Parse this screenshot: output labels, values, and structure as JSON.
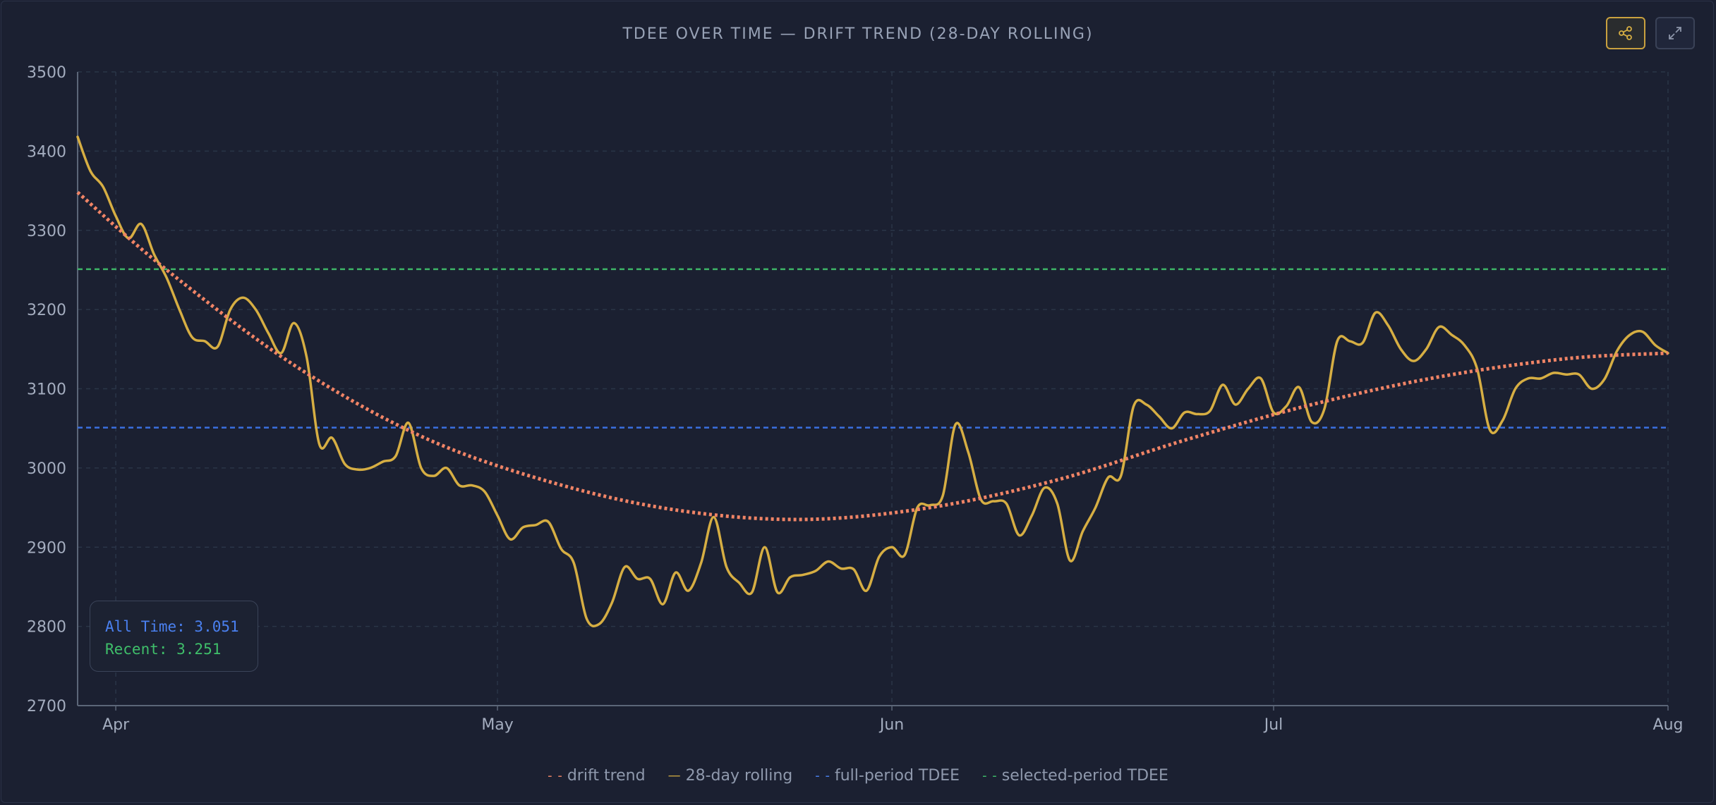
{
  "colors": {
    "background": "#1b2031",
    "drift": "#f08466",
    "rolling": "#d6ae43",
    "full": "#3a6fe0",
    "selected": "#3db567",
    "grid": "#2a3547",
    "axis": "#5c6678"
  },
  "toolbar": {
    "share_icon": "share-icon",
    "expand_icon": "expand-icon"
  },
  "stats": {
    "all_time": "All Time: 3.051",
    "recent": "Recent: 3.251"
  },
  "legend": [
    {
      "swatch": "- -",
      "label": "drift trend",
      "color": "#f08466"
    },
    {
      "swatch": "—",
      "label": "28-day rolling",
      "color": "#d6ae43"
    },
    {
      "swatch": "- -",
      "label": "full-period TDEE",
      "color": "#4a80f0"
    },
    {
      "swatch": "- -",
      "label": "selected-period TDEE",
      "color": "#3fbf6a"
    }
  ],
  "chart_data": {
    "type": "line",
    "title": "TDEE OVER TIME — DRIFT TREND (28-DAY ROLLING)",
    "xlabel": "",
    "ylabel": "",
    "ylim": [
      2700,
      3500
    ],
    "xlim": [
      "2024-03-29",
      "2024-08-01"
    ],
    "yticks": [
      2700,
      2800,
      2900,
      3000,
      3100,
      3200,
      3300,
      3400,
      3500
    ],
    "xticks": [
      {
        "date": "2024-04-01",
        "label": "Apr"
      },
      {
        "date": "2024-05-01",
        "label": "May"
      },
      {
        "date": "2024-06-01",
        "label": "Jun"
      },
      {
        "date": "2024-07-01",
        "label": "Jul"
      },
      {
        "date": "2024-08-01",
        "label": "Aug"
      }
    ],
    "grid": true,
    "legend_position": "bottom",
    "series": [
      {
        "name": "28-day rolling",
        "style": "solid",
        "points": [
          [
            "2024-03-29",
            3418
          ],
          [
            "2024-03-30",
            3375
          ],
          [
            "2024-03-31",
            3355
          ],
          [
            "2024-04-01",
            3318
          ],
          [
            "2024-04-02",
            3290
          ],
          [
            "2024-04-03",
            3308
          ],
          [
            "2024-04-04",
            3270
          ],
          [
            "2024-04-05",
            3240
          ],
          [
            "2024-04-06",
            3200
          ],
          [
            "2024-04-07",
            3165
          ],
          [
            "2024-04-08",
            3160
          ],
          [
            "2024-04-09",
            3153
          ],
          [
            "2024-04-10",
            3200
          ],
          [
            "2024-04-11",
            3215
          ],
          [
            "2024-04-12",
            3200
          ],
          [
            "2024-04-13",
            3170
          ],
          [
            "2024-04-14",
            3145
          ],
          [
            "2024-04-15",
            3183
          ],
          [
            "2024-04-16",
            3140
          ],
          [
            "2024-04-17",
            3030
          ],
          [
            "2024-04-18",
            3038
          ],
          [
            "2024-04-19",
            3005
          ],
          [
            "2024-04-20",
            2998
          ],
          [
            "2024-04-21",
            3000
          ],
          [
            "2024-04-22",
            3008
          ],
          [
            "2024-04-23",
            3015
          ],
          [
            "2024-04-24",
            3057
          ],
          [
            "2024-04-25",
            3000
          ],
          [
            "2024-04-26",
            2990
          ],
          [
            "2024-04-27",
            3000
          ],
          [
            "2024-04-28",
            2978
          ],
          [
            "2024-04-29",
            2978
          ],
          [
            "2024-04-30",
            2970
          ],
          [
            "2024-05-01",
            2940
          ],
          [
            "2024-05-02",
            2910
          ],
          [
            "2024-05-03",
            2925
          ],
          [
            "2024-05-04",
            2928
          ],
          [
            "2024-05-05",
            2932
          ],
          [
            "2024-05-06",
            2898
          ],
          [
            "2024-05-07",
            2880
          ],
          [
            "2024-05-08",
            2810
          ],
          [
            "2024-05-09",
            2803
          ],
          [
            "2024-05-10",
            2830
          ],
          [
            "2024-05-11",
            2875
          ],
          [
            "2024-05-12",
            2860
          ],
          [
            "2024-05-13",
            2860
          ],
          [
            "2024-05-14",
            2828
          ],
          [
            "2024-05-15",
            2868
          ],
          [
            "2024-05-16",
            2845
          ],
          [
            "2024-05-17",
            2880
          ],
          [
            "2024-05-18",
            2938
          ],
          [
            "2024-05-19",
            2875
          ],
          [
            "2024-05-20",
            2855
          ],
          [
            "2024-05-21",
            2843
          ],
          [
            "2024-05-22",
            2900
          ],
          [
            "2024-05-23",
            2843
          ],
          [
            "2024-05-24",
            2862
          ],
          [
            "2024-05-25",
            2865
          ],
          [
            "2024-05-26",
            2870
          ],
          [
            "2024-05-27",
            2882
          ],
          [
            "2024-05-28",
            2873
          ],
          [
            "2024-05-29",
            2872
          ],
          [
            "2024-05-30",
            2845
          ],
          [
            "2024-05-31",
            2888
          ],
          [
            "2024-06-01",
            2900
          ],
          [
            "2024-06-02",
            2890
          ],
          [
            "2024-06-03",
            2950
          ],
          [
            "2024-06-04",
            2953
          ],
          [
            "2024-06-05",
            2965
          ],
          [
            "2024-06-06",
            3055
          ],
          [
            "2024-06-07",
            3020
          ],
          [
            "2024-06-08",
            2960
          ],
          [
            "2024-06-09",
            2958
          ],
          [
            "2024-06-10",
            2955
          ],
          [
            "2024-06-11",
            2915
          ],
          [
            "2024-06-12",
            2940
          ],
          [
            "2024-06-13",
            2975
          ],
          [
            "2024-06-14",
            2955
          ],
          [
            "2024-06-15",
            2883
          ],
          [
            "2024-06-16",
            2920
          ],
          [
            "2024-06-17",
            2950
          ],
          [
            "2024-06-18",
            2988
          ],
          [
            "2024-06-19",
            2990
          ],
          [
            "2024-06-20",
            3078
          ],
          [
            "2024-06-21",
            3080
          ],
          [
            "2024-06-22",
            3065
          ],
          [
            "2024-06-23",
            3050
          ],
          [
            "2024-06-24",
            3070
          ],
          [
            "2024-06-25",
            3068
          ],
          [
            "2024-06-26",
            3072
          ],
          [
            "2024-06-27",
            3105
          ],
          [
            "2024-06-28",
            3080
          ],
          [
            "2024-06-29",
            3100
          ],
          [
            "2024-06-30",
            3113
          ],
          [
            "2024-07-01",
            3070
          ],
          [
            "2024-07-02",
            3078
          ],
          [
            "2024-07-03",
            3102
          ],
          [
            "2024-07-04",
            3058
          ],
          [
            "2024-07-05",
            3075
          ],
          [
            "2024-07-06",
            3160
          ],
          [
            "2024-07-07",
            3160
          ],
          [
            "2024-07-08",
            3158
          ],
          [
            "2024-07-09",
            3196
          ],
          [
            "2024-07-10",
            3180
          ],
          [
            "2024-07-11",
            3150
          ],
          [
            "2024-07-12",
            3135
          ],
          [
            "2024-07-13",
            3150
          ],
          [
            "2024-07-14",
            3178
          ],
          [
            "2024-07-15",
            3168
          ],
          [
            "2024-07-16",
            3155
          ],
          [
            "2024-07-17",
            3125
          ],
          [
            "2024-07-18",
            3048
          ],
          [
            "2024-07-19",
            3060
          ],
          [
            "2024-07-20",
            3100
          ],
          [
            "2024-07-21",
            3113
          ],
          [
            "2024-07-22",
            3113
          ],
          [
            "2024-07-23",
            3120
          ],
          [
            "2024-07-24",
            3118
          ],
          [
            "2024-07-25",
            3118
          ],
          [
            "2024-07-26",
            3100
          ],
          [
            "2024-07-27",
            3112
          ],
          [
            "2024-07-28",
            3148
          ],
          [
            "2024-07-29",
            3168
          ],
          [
            "2024-07-30",
            3172
          ],
          [
            "2024-07-31",
            3155
          ],
          [
            "2024-08-01",
            3145
          ]
        ]
      },
      {
        "name": "drift trend",
        "style": "dotted",
        "points": [
          [
            "2024-03-29",
            3348
          ],
          [
            "2024-04-05",
            3250
          ],
          [
            "2024-04-15",
            3130
          ],
          [
            "2024-04-25",
            3040
          ],
          [
            "2024-05-05",
            2983
          ],
          [
            "2024-05-15",
            2947
          ],
          [
            "2024-05-25",
            2935
          ],
          [
            "2024-06-04",
            2950
          ],
          [
            "2024-06-14",
            2985
          ],
          [
            "2024-06-24",
            3035
          ],
          [
            "2024-07-04",
            3080
          ],
          [
            "2024-07-14",
            3115
          ],
          [
            "2024-07-24",
            3138
          ],
          [
            "2024-08-01",
            3145
          ]
        ]
      },
      {
        "name": "full-period TDEE",
        "style": "dashed",
        "points": [
          [
            "2024-03-29",
            3051
          ],
          [
            "2024-08-01",
            3051
          ]
        ]
      },
      {
        "name": "selected-period TDEE",
        "style": "dashed",
        "points": [
          [
            "2024-03-29",
            3251
          ],
          [
            "2024-08-01",
            3251
          ]
        ]
      }
    ]
  }
}
